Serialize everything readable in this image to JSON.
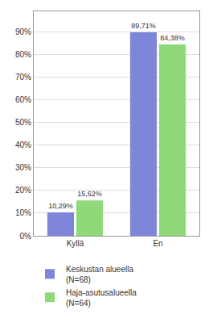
{
  "chart_data": {
    "type": "bar",
    "categories": [
      "Kyllä",
      "En"
    ],
    "series": [
      {
        "name": "Keskustan alueella (N=68)",
        "color": "#7f86d9",
        "values": [
          10.29,
          89.71
        ],
        "value_labels": [
          "10,29%",
          "89,71%"
        ]
      },
      {
        "name": "Haja-asutusalueella (N=64)",
        "color": "#8fd97b",
        "values": [
          15.62,
          84.38
        ],
        "value_labels": [
          "15,62%",
          "84,38%"
        ]
      }
    ],
    "ylim": [
      0,
      99
    ],
    "yticks": [
      {
        "value": 0,
        "label": "0%"
      },
      {
        "value": 10,
        "label": "10%"
      },
      {
        "value": 20,
        "label": "20%"
      },
      {
        "value": 30,
        "label": "30%"
      },
      {
        "value": 40,
        "label": "40%"
      },
      {
        "value": 50,
        "label": "50%"
      },
      {
        "value": 60,
        "label": "60%"
      },
      {
        "value": 70,
        "label": "70%"
      },
      {
        "value": 80,
        "label": "80%"
      },
      {
        "value": 90,
        "label": "90%"
      }
    ],
    "grid": true,
    "data_labels": true,
    "legend": "bottom"
  }
}
